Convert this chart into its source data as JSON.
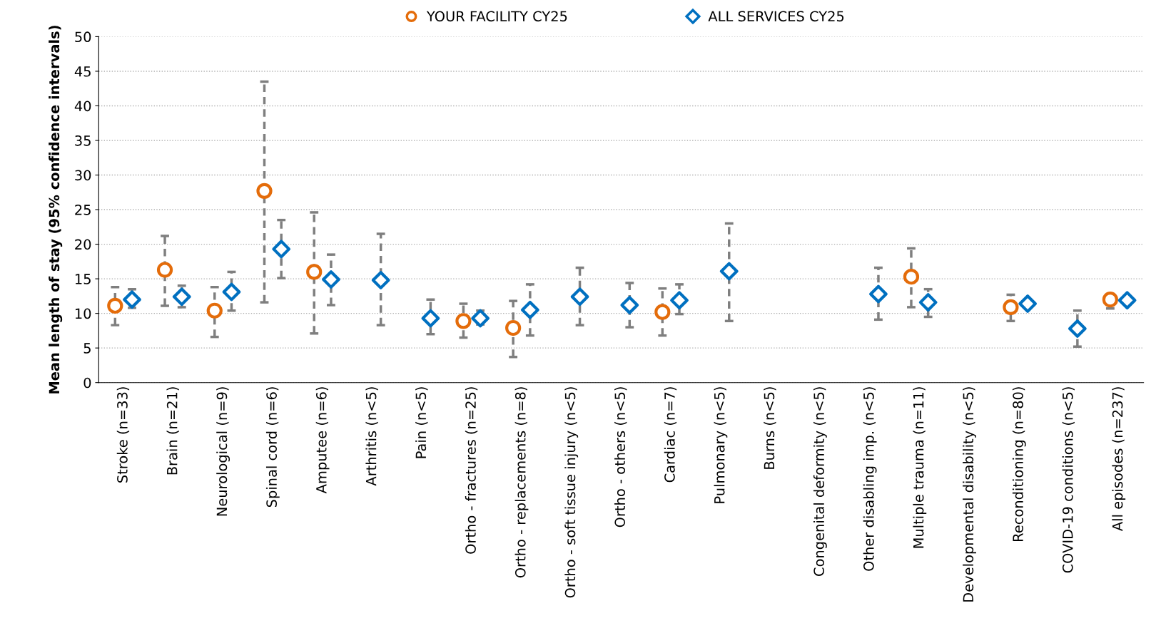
{
  "chart_data": {
    "type": "scatter",
    "ylabel": "Mean length of stay (95% confidence intervals)",
    "categories": [
      "Stroke (n=33)",
      "Brain (n=21)",
      "Neurological (n=9)",
      "Spinal cord (n=6)",
      "Amputee (n=6)",
      "Arthritis (n<5)",
      "Pain (n<5)",
      "Ortho - fractures (n=25)",
      "Ortho - replacements (n=8)",
      "Ortho - soft tissue injury (n<5)",
      "Ortho - others (n<5)",
      "Cardiac (n=7)",
      "Pulmonary (n<5)",
      "Burns (n<5)",
      "Congenital deformity (n<5)",
      "Other disabling imp. (n<5)",
      "Multiple trauma (n=11)",
      "Developmental disability (n<5)",
      "Reconditioning (n=80)",
      "COVID-19 conditions (n<5)",
      "All episodes (n=237)"
    ],
    "series": [
      {
        "name": "YOUR FACILITY CY25",
        "color": "#e46c0a",
        "marker": "circle",
        "values": [
          11.1,
          16.3,
          10.4,
          27.7,
          16.0,
          null,
          null,
          8.9,
          7.9,
          null,
          null,
          10.2,
          null,
          null,
          null,
          null,
          15.3,
          null,
          10.9,
          null,
          12.0
        ],
        "errors": [
          [
            8.3,
            13.8
          ],
          [
            11.1,
            21.2
          ],
          [
            6.6,
            13.8
          ],
          [
            11.6,
            43.5
          ],
          [
            7.1,
            24.6
          ],
          null,
          null,
          [
            6.5,
            11.4
          ],
          [
            3.7,
            11.8
          ],
          null,
          null,
          [
            6.8,
            13.6
          ],
          null,
          null,
          null,
          null,
          [
            10.9,
            19.4
          ],
          null,
          [
            8.9,
            12.7
          ],
          null,
          [
            10.7,
            12.7
          ]
        ]
      },
      {
        "name": "ALL SERVICES CY25",
        "color": "#0070c0",
        "marker": "diamond",
        "values": [
          12.0,
          12.4,
          13.1,
          19.3,
          14.9,
          14.8,
          9.3,
          9.3,
          10.5,
          12.4,
          11.2,
          11.9,
          16.1,
          null,
          null,
          12.8,
          11.6,
          null,
          11.4,
          7.8,
          11.9
        ],
        "errors": [
          [
            10.8,
            13.5
          ],
          [
            10.9,
            14.0
          ],
          [
            10.4,
            16.0
          ],
          [
            15.1,
            23.5
          ],
          [
            11.2,
            18.5
          ],
          [
            8.3,
            21.5
          ],
          [
            7.0,
            12.0
          ],
          [
            8.4,
            10.4
          ],
          [
            6.8,
            14.2
          ],
          [
            8.3,
            16.6
          ],
          [
            8.0,
            14.4
          ],
          [
            9.9,
            14.2
          ],
          [
            8.9,
            23.0
          ],
          null,
          null,
          [
            9.1,
            16.6
          ],
          [
            9.5,
            13.5
          ],
          null,
          null,
          [
            5.2,
            10.4
          ],
          null
        ]
      }
    ],
    "ylim": [
      0,
      50
    ],
    "yticks": [
      0,
      5,
      10,
      15,
      20,
      25,
      30,
      35,
      40,
      45,
      50
    ],
    "grid": "y",
    "legend": "top"
  }
}
